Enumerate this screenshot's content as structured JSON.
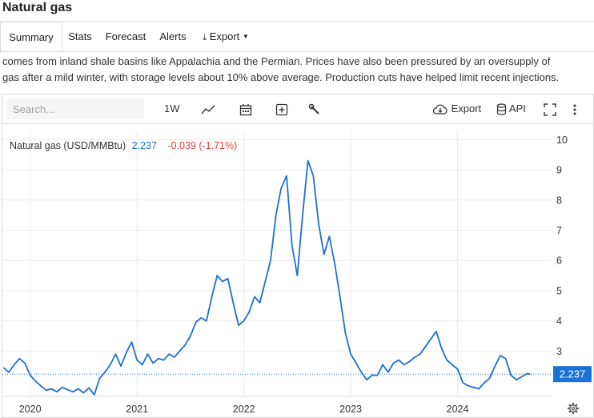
{
  "page": {
    "title": "Natural gas"
  },
  "tabs": [
    {
      "label": "Summary",
      "active": true
    },
    {
      "label": "Stats"
    },
    {
      "label": "Forecast"
    },
    {
      "label": "Alerts"
    },
    {
      "label": "Export"
    }
  ],
  "description": {
    "line1": "comes from inland shale basins like Appalachia and the Permian. Prices have also been pressured by an oversupply of",
    "line2": "gas after a mild winter, with storage levels about 10% above average. Production cuts have helped limit recent injections."
  },
  "toolbar": {
    "search_placeholder": "Search...",
    "interval": "1W",
    "export_label": "Export",
    "api_label": "API",
    "icons": [
      "line-chart-icon",
      "calendar-icon",
      "plus-box-icon",
      "wrench-icon",
      "cloud-download-icon",
      "database-icon",
      "fullscreen-icon",
      "more-vertical-icon",
      "settings-gear-icon"
    ]
  },
  "legend": {
    "name": "Natural gas (USD/MMBtu)",
    "value": "2.237",
    "change": "-0.039 (-1.71%)",
    "value_color": "#1a73d9",
    "change_color": "#e0413a"
  },
  "chart_data": {
    "type": "line",
    "series_color": "#1f6fd1",
    "x_ticks": [
      "2020",
      "2021",
      "2022",
      "2023",
      "2024"
    ],
    "y_ticks": [
      "3",
      "4",
      "5",
      "6",
      "7",
      "8",
      "9",
      "10"
    ],
    "ylim": [
      1.5,
      10.3
    ],
    "last_value_label": "2.237",
    "last_value_color": "#1a73d9",
    "grid": true,
    "series": [
      {
        "values": [
          [
            2019.75,
            2.45
          ],
          [
            2019.8,
            2.3
          ],
          [
            2019.85,
            2.55
          ],
          [
            2019.9,
            2.75
          ],
          [
            2019.95,
            2.6
          ],
          [
            2020.0,
            2.2
          ],
          [
            2020.05,
            2.0
          ],
          [
            2020.1,
            1.85
          ],
          [
            2020.15,
            1.7
          ],
          [
            2020.2,
            1.75
          ],
          [
            2020.25,
            1.65
          ],
          [
            2020.3,
            1.8
          ],
          [
            2020.35,
            1.72
          ],
          [
            2020.4,
            1.65
          ],
          [
            2020.45,
            1.75
          ],
          [
            2020.5,
            1.62
          ],
          [
            2020.55,
            1.78
          ],
          [
            2020.6,
            1.55
          ],
          [
            2020.65,
            2.1
          ],
          [
            2020.7,
            2.3
          ],
          [
            2020.75,
            2.55
          ],
          [
            2020.8,
            2.9
          ],
          [
            2020.85,
            2.5
          ],
          [
            2020.9,
            2.95
          ],
          [
            2020.95,
            3.3
          ],
          [
            2021.0,
            2.7
          ],
          [
            2021.05,
            2.55
          ],
          [
            2021.1,
            2.9
          ],
          [
            2021.15,
            2.6
          ],
          [
            2021.2,
            2.75
          ],
          [
            2021.25,
            2.7
          ],
          [
            2021.3,
            2.9
          ],
          [
            2021.35,
            2.8
          ],
          [
            2021.4,
            3.0
          ],
          [
            2021.45,
            3.2
          ],
          [
            2021.5,
            3.5
          ],
          [
            2021.55,
            3.95
          ],
          [
            2021.6,
            4.1
          ],
          [
            2021.65,
            4.0
          ],
          [
            2021.7,
            4.8
          ],
          [
            2021.75,
            5.5
          ],
          [
            2021.8,
            5.3
          ],
          [
            2021.85,
            5.4
          ],
          [
            2021.9,
            4.6
          ],
          [
            2021.95,
            3.85
          ],
          [
            2022.0,
            4.0
          ],
          [
            2022.05,
            4.3
          ],
          [
            2022.1,
            4.8
          ],
          [
            2022.15,
            4.6
          ],
          [
            2022.2,
            5.3
          ],
          [
            2022.25,
            6.0
          ],
          [
            2022.3,
            7.5
          ],
          [
            2022.35,
            8.4
          ],
          [
            2022.4,
            8.8
          ],
          [
            2022.45,
            6.5
          ],
          [
            2022.5,
            5.5
          ],
          [
            2022.55,
            7.5
          ],
          [
            2022.6,
            9.3
          ],
          [
            2022.65,
            8.8
          ],
          [
            2022.7,
            7.2
          ],
          [
            2022.75,
            6.2
          ],
          [
            2022.8,
            6.8
          ],
          [
            2022.85,
            5.9
          ],
          [
            2022.9,
            4.8
          ],
          [
            2022.95,
            3.6
          ],
          [
            2023.0,
            2.9
          ],
          [
            2023.05,
            2.6
          ],
          [
            2023.1,
            2.3
          ],
          [
            2023.15,
            2.05
          ],
          [
            2023.2,
            2.2
          ],
          [
            2023.25,
            2.2
          ],
          [
            2023.3,
            2.55
          ],
          [
            2023.35,
            2.3
          ],
          [
            2023.4,
            2.6
          ],
          [
            2023.45,
            2.7
          ],
          [
            2023.5,
            2.55
          ],
          [
            2023.55,
            2.65
          ],
          [
            2023.6,
            2.8
          ],
          [
            2023.65,
            2.9
          ],
          [
            2023.7,
            3.15
          ],
          [
            2023.75,
            3.4
          ],
          [
            2023.8,
            3.65
          ],
          [
            2023.85,
            3.1
          ],
          [
            2023.9,
            2.7
          ],
          [
            2023.95,
            2.55
          ],
          [
            2024.0,
            2.4
          ],
          [
            2024.05,
            1.95
          ],
          [
            2024.1,
            1.85
          ],
          [
            2024.15,
            1.8
          ],
          [
            2024.2,
            1.75
          ],
          [
            2024.25,
            1.95
          ],
          [
            2024.3,
            2.1
          ],
          [
            2024.35,
            2.5
          ],
          [
            2024.4,
            2.85
          ],
          [
            2024.45,
            2.75
          ],
          [
            2024.5,
            2.2
          ],
          [
            2024.55,
            2.05
          ],
          [
            2024.6,
            2.15
          ],
          [
            2024.65,
            2.25
          ],
          [
            2024.68,
            2.237
          ]
        ]
      }
    ]
  }
}
